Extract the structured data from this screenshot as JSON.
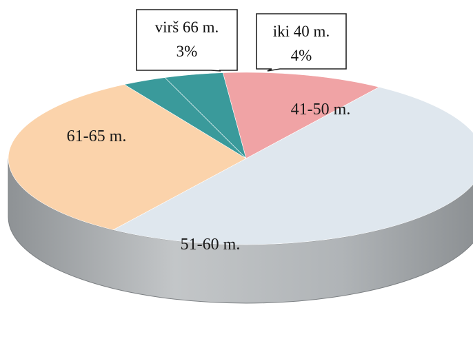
{
  "chart_data": {
    "type": "pie",
    "title": "",
    "slices": [
      {
        "label": "iki 40 m.",
        "value": 4,
        "value_label": "4%",
        "color": "#3a9a9b"
      },
      {
        "label": "41-50 m.",
        "value": 11,
        "value_label": "",
        "color": "#f0a3a5"
      },
      {
        "label": "51-60 m.",
        "value": 50,
        "value_label": "",
        "color": "#dfe7ee"
      },
      {
        "label": "61-65 m.",
        "value": 32,
        "value_label": "",
        "color": "#fbd3ab"
      },
      {
        "label": "virš 66 m.",
        "value": 3,
        "value_label": "3%",
        "color": "#3a9a9b"
      }
    ],
    "side_color": "#a9adb0",
    "style": "3d"
  }
}
